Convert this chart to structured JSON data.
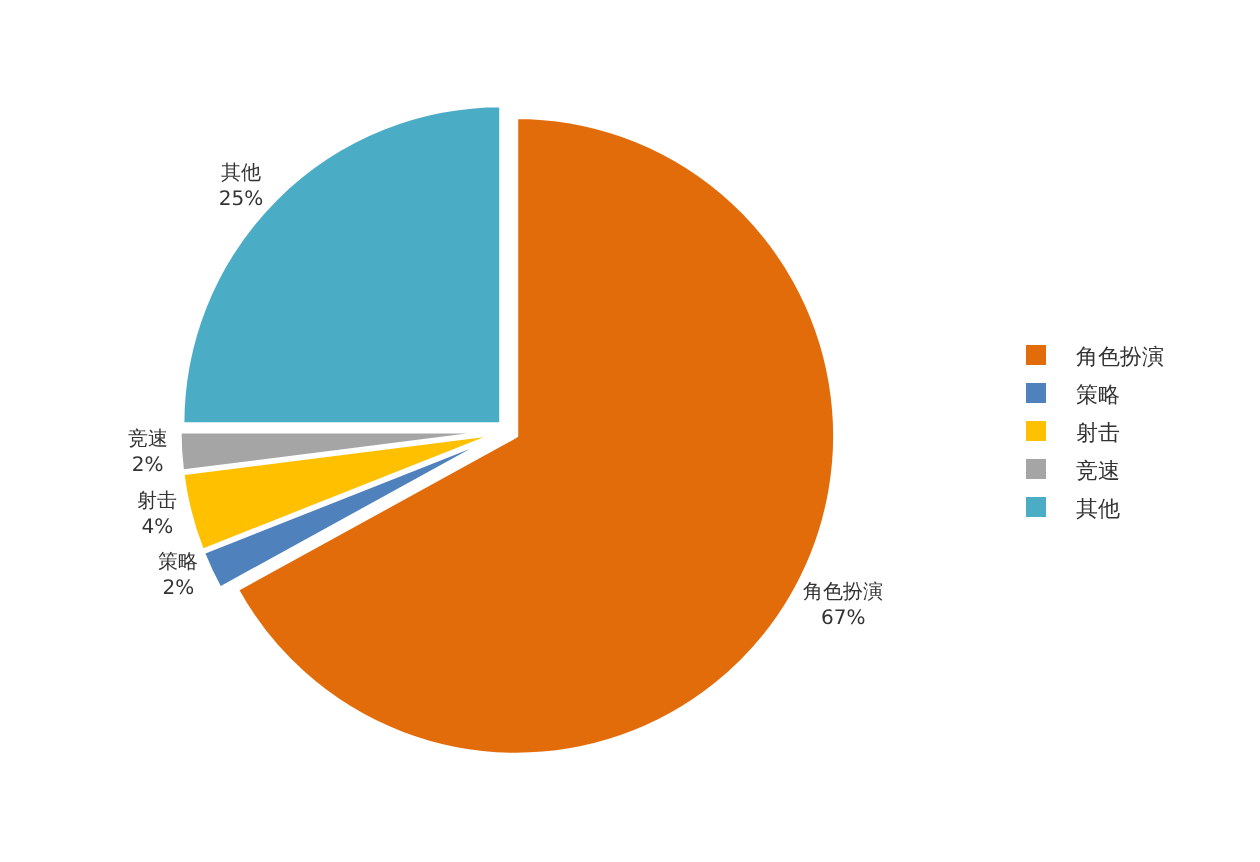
{
  "chart_data": {
    "type": "pie",
    "categories": [
      "角色扮演",
      "策略",
      "射击",
      "竞速",
      "其他"
    ],
    "values": [
      67,
      2,
      4,
      2,
      25
    ],
    "value_labels": [
      "67%",
      "2%",
      "4%",
      "2%",
      "25%"
    ],
    "colors": [
      "#e36c0a",
      "#4f81bd",
      "#ffc000",
      "#a5a5a5",
      "#4bacc6"
    ],
    "legend": "right"
  }
}
